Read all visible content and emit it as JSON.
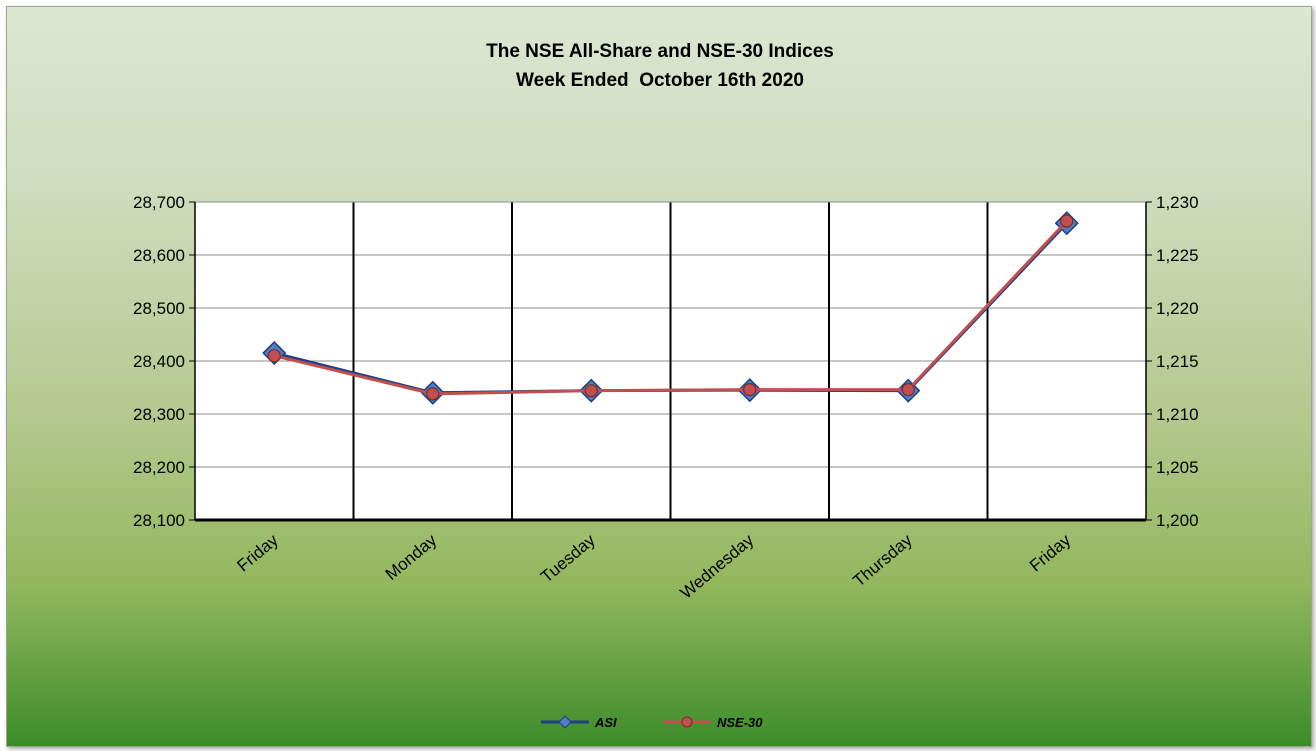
{
  "chart_data": {
    "type": "line",
    "title": "The NSE All-Share and NSE-30 Indices",
    "subtitle": "Week Ended  October 16th 2020",
    "categories": [
      "Friday",
      "Monday",
      "Tuesday",
      "Wednesday",
      "Thursday",
      "Friday"
    ],
    "y_left": {
      "range": [
        28100,
        28700
      ],
      "ticks": [
        "28,100",
        "28,200",
        "28,300",
        "28,400",
        "28,500",
        "28,600",
        "28,700"
      ]
    },
    "y_right": {
      "range": [
        1200,
        1230
      ],
      "ticks": [
        "1,200",
        "1,205",
        "1,210",
        "1,215",
        "1,220",
        "1,225",
        "1,230"
      ]
    },
    "series": [
      {
        "name": "ASI",
        "axis": "left",
        "values": [
          28415,
          28340,
          28344,
          28345,
          28344,
          28660
        ],
        "color": "#1f3f86",
        "marker": "diamond"
      },
      {
        "name": "NSE-30",
        "axis": "right",
        "values": [
          1215.5,
          1211.9,
          1212.2,
          1212.3,
          1212.3,
          1228.2
        ],
        "color": "#c0504d",
        "marker": "circle"
      }
    ],
    "grid": {
      "horizontal": true,
      "vertical": true
    },
    "legend": "bottom"
  }
}
